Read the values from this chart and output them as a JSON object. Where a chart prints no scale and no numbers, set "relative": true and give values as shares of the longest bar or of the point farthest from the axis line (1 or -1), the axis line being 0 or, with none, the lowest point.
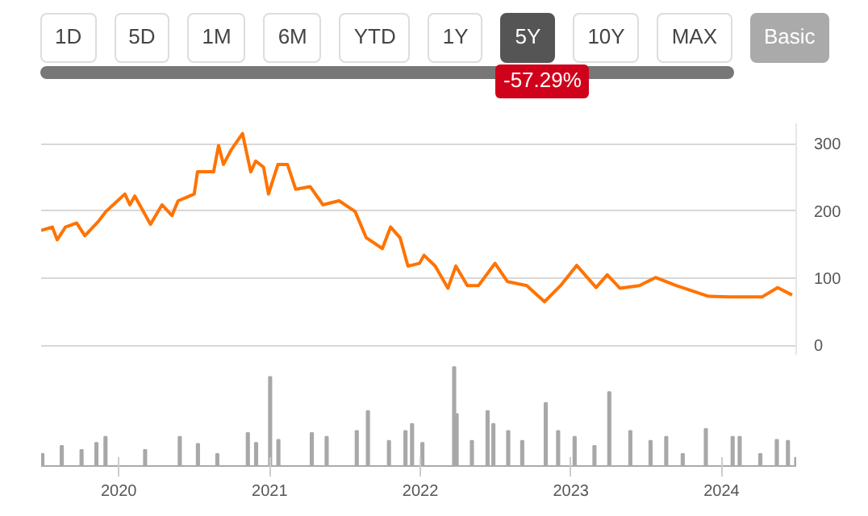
{
  "chart_data": [
    {
      "type": "line",
      "annotations": [
        "1D",
        "5D",
        "1M",
        "6M",
        "YTD",
        "1Y",
        "5Y",
        "10Y",
        "MAX",
        "Basic",
        "-57.29%"
      ],
      "x": [
        "2019-06-27",
        "2019-07-24",
        "2019-08-05",
        "2019-08-25",
        "2019-09-21",
        "2019-10-11",
        "2019-11-11",
        "2019-12-01",
        "2020-01-16",
        "2020-01-28",
        "2020-02-09",
        "2020-03-18",
        "2020-04-15",
        "2020-05-09",
        "2020-05-24",
        "2020-06-13",
        "2020-07-02",
        "2020-07-10",
        "2020-08-18",
        "2020-08-30",
        "2020-09-11",
        "2020-09-30",
        "2020-10-27",
        "2020-11-16",
        "2020-11-28",
        "2020-12-17",
        "2020-12-29",
        "2021-01-21",
        "2021-02-13",
        "2021-03-05",
        "2021-04-09",
        "2021-05-10",
        "2021-06-18",
        "2021-07-27",
        "2021-08-23",
        "2021-10-01",
        "2021-10-21",
        "2021-11-13",
        "2021-12-02",
        "2021-12-30",
        "2022-01-10",
        "2022-02-06",
        "2022-03-09",
        "2022-03-28",
        "2022-04-25",
        "2022-05-22",
        "2022-07-01",
        "2022-07-31",
        "2022-09-16",
        "2022-10-29",
        "2022-12-07",
        "2023-01-15",
        "2023-03-03",
        "2023-03-30",
        "2023-04-30",
        "2023-06-16",
        "2023-07-25",
        "2023-09-13",
        "2023-12-01",
        "2024-01-20",
        "2024-04-08",
        "2024-05-16",
        "2024-06-20"
      ],
      "series": [
        {
          "color": "#ff7300",
          "values": [
            171,
            176,
            157,
            176,
            182,
            163,
            183,
            199,
            225,
            209,
            222,
            180,
            209,
            193,
            215,
            220,
            225,
            258,
            258,
            297,
            269,
            291,
            315,
            258,
            274,
            265,
            225,
            269,
            269,
            232,
            236,
            209,
            215,
            199,
            160,
            144,
            176,
            160,
            118,
            122,
            134,
            118,
            85,
            118,
            89,
            89,
            122,
            95,
            89,
            65,
            89,
            119,
            86,
            105,
            85,
            89,
            101,
            89,
            73,
            72,
            72,
            86,
            75
          ]
        }
      ],
      "xlim": [
        "2019-06-27",
        "2024-06-30"
      ],
      "ylim": [
        -15,
        330
      ],
      "yticks": [
        0,
        100,
        200,
        300
      ],
      "grid": "y",
      "tick_labels": "y",
      "line_style": "solid"
    },
    {
      "type": "bar",
      "relative": true,
      "tick_labels": "x",
      "xlim": [
        "2019-06-27",
        "2024-06-30"
      ],
      "xticks": [
        "2020",
        "2021",
        "2022",
        "2023",
        "2024"
      ],
      "x": [
        "2019-06-30",
        "2019-08-16",
        "2019-10-03",
        "2019-11-08",
        "2019-11-30",
        "2020-03-05",
        "2020-05-28",
        "2020-07-11",
        "2020-08-27",
        "2020-11-09",
        "2020-11-29",
        "2021-01-02",
        "2021-01-22",
        "2021-04-13",
        "2021-05-19",
        "2021-07-31",
        "2021-08-27",
        "2021-10-17",
        "2021-11-26",
        "2021-12-12",
        "2022-01-06",
        "2022-03-24",
        "2022-03-30",
        "2022-05-06",
        "2022-06-13",
        "2022-06-27",
        "2022-08-02",
        "2022-09-05",
        "2022-11-01",
        "2022-12-01",
        "2023-01-10",
        "2023-02-27",
        "2023-04-04",
        "2023-05-25",
        "2023-07-13",
        "2023-08-20",
        "2023-09-29",
        "2023-11-24",
        "2024-01-28",
        "2024-02-14",
        "2024-04-04",
        "2024-05-14",
        "2024-06-10",
        "2024-06-30"
      ],
      "series": [
        {
          "color": "#a8a8a8",
          "values": [
            0.13,
            0.21,
            0.17,
            0.24,
            0.3,
            0.17,
            0.3,
            0.23,
            0.13,
            0.34,
            0.24,
            0.9,
            0.27,
            0.34,
            0.3,
            0.36,
            0.56,
            0.26,
            0.36,
            0.43,
            0.24,
            1.0,
            0.53,
            0.26,
            0.56,
            0.43,
            0.36,
            0.26,
            0.64,
            0.36,
            0.3,
            0.21,
            0.75,
            0.36,
            0.26,
            0.3,
            0.13,
            0.38,
            0.3,
            0.3,
            0.13,
            0.27,
            0.26,
            0.09
          ]
        }
      ]
    }
  ]
}
